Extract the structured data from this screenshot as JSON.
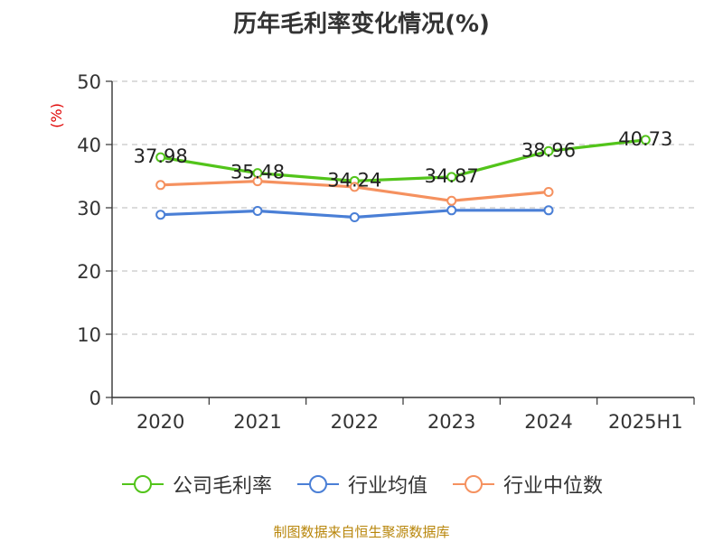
{
  "title": "历年毛利率变化情况(%)",
  "source": "制图数据来自恒生聚源数据库",
  "chart_data": {
    "type": "line",
    "title": "历年毛利率变化情况(%)",
    "ylabel": "(%)",
    "ylim": [
      0,
      50
    ],
    "yticks": [
      0,
      10,
      20,
      30,
      40,
      50
    ],
    "grid": true,
    "legend_position": "bottom",
    "categories": [
      "2020",
      "2021",
      "2022",
      "2023",
      "2024",
      "2025H1"
    ],
    "series": [
      {
        "name": "公司毛利率",
        "color": "#52c41a",
        "values": [
          37.98,
          35.48,
          34.24,
          34.87,
          38.96,
          40.73
        ],
        "show_labels": true
      },
      {
        "name": "行业均值",
        "color": "#4a7fd6",
        "values": [
          28.9,
          29.5,
          28.5,
          29.6,
          29.6,
          null
        ],
        "show_labels": false
      },
      {
        "name": "行业中位数",
        "color": "#f5915f",
        "values": [
          33.6,
          34.2,
          33.3,
          31.1,
          32.5,
          null
        ],
        "show_labels": false
      }
    ]
  }
}
